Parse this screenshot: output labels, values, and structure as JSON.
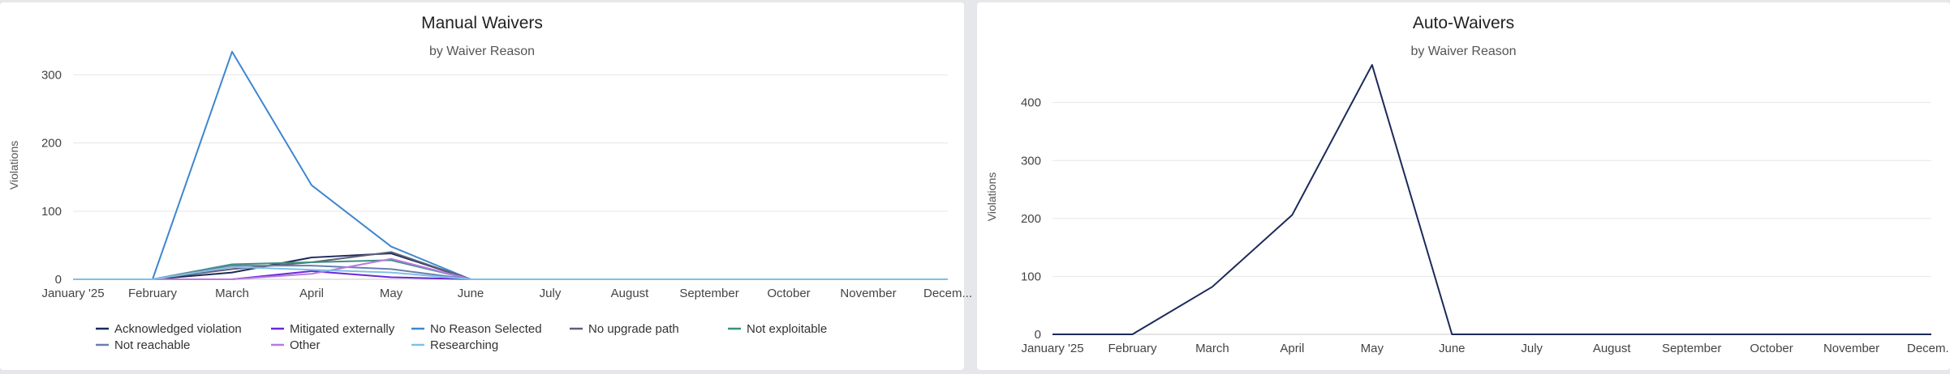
{
  "charts": {
    "manual": {
      "title": "Manual Waivers",
      "subtitle": "by Waiver Reason",
      "ylabel": "Violations"
    },
    "auto": {
      "title": "Auto-Waivers",
      "subtitle": "by Waiver Reason",
      "ylabel": "Violations"
    }
  },
  "chart_data": [
    {
      "type": "line",
      "title": "Manual Waivers",
      "subtitle": "by Waiver Reason",
      "xlabel": "",
      "ylabel": "Violations",
      "ylim": [
        0,
        335
      ],
      "yticks": [
        0,
        100,
        200,
        300
      ],
      "grid": true,
      "legend_position": "bottom",
      "categories": [
        "January '25",
        "February",
        "March",
        "April",
        "May",
        "June",
        "July",
        "August",
        "September",
        "October",
        "November",
        "Decem..."
      ],
      "series": [
        {
          "name": "Acknowledged violation",
          "color": "#1c2a59",
          "values": [
            0,
            0,
            10,
            32,
            38,
            0,
            0,
            0,
            0,
            0,
            0,
            0
          ]
        },
        {
          "name": "Mitigated externally",
          "color": "#6a28d8",
          "values": [
            0,
            0,
            0,
            12,
            3,
            0,
            0,
            0,
            0,
            0,
            0,
            0
          ]
        },
        {
          "name": "No Reason Selected",
          "color": "#3f86cf",
          "values": [
            0,
            0,
            334,
            138,
            48,
            0,
            0,
            0,
            0,
            0,
            0,
            0
          ]
        },
        {
          "name": "No upgrade path",
          "color": "#5d5f78",
          "values": [
            0,
            0,
            15,
            25,
            40,
            0,
            0,
            0,
            0,
            0,
            0,
            0
          ]
        },
        {
          "name": "Not exploitable",
          "color": "#3e8f7f",
          "values": [
            0,
            0,
            22,
            25,
            28,
            0,
            0,
            0,
            0,
            0,
            0,
            0
          ]
        },
        {
          "name": "Not reachable",
          "color": "#6b7fae",
          "values": [
            0,
            0,
            20,
            20,
            15,
            0,
            0,
            0,
            0,
            0,
            0,
            0
          ]
        },
        {
          "name": "Other",
          "color": "#b67be0",
          "values": [
            0,
            0,
            0,
            8,
            30,
            0,
            0,
            0,
            0,
            0,
            0,
            0
          ]
        },
        {
          "name": "Researching",
          "color": "#7fc1e6",
          "values": [
            0,
            0,
            18,
            14,
            10,
            0,
            0,
            0,
            0,
            0,
            0,
            0
          ]
        }
      ]
    },
    {
      "type": "line",
      "title": "Auto-Waivers",
      "subtitle": "by Waiver Reason",
      "xlabel": "",
      "ylabel": "Violations",
      "ylim": [
        0,
        475
      ],
      "yticks": [
        0,
        100,
        200,
        300,
        400
      ],
      "grid": true,
      "categories": [
        "January '25",
        "February",
        "March",
        "April",
        "May",
        "June",
        "July",
        "August",
        "September",
        "October",
        "November",
        "Decem..."
      ],
      "series": [
        {
          "color": "#1c2a59",
          "values": [
            0,
            0,
            82,
            206,
            465,
            0,
            0,
            0,
            0,
            0,
            0,
            0
          ]
        }
      ]
    }
  ]
}
